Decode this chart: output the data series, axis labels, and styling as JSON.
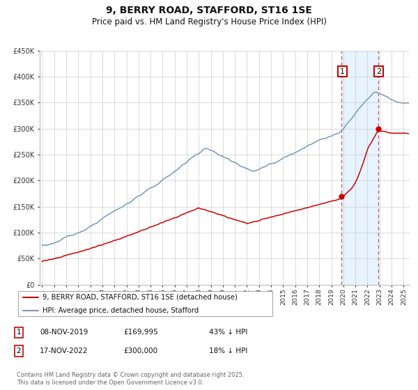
{
  "title": "9, BERRY ROAD, STAFFORD, ST16 1SE",
  "subtitle": "Price paid vs. HM Land Registry's House Price Index (HPI)",
  "title_fontsize": 10,
  "subtitle_fontsize": 8.5,
  "background_color": "#ffffff",
  "grid_color": "#cccccc",
  "red_color": "#cc0000",
  "blue_color": "#7799bb",
  "shade_color": "#ddeeff",
  "dashed_line_color": "#cc5555",
  "legend_label_red": "9, BERRY ROAD, STAFFORD, ST16 1SE (detached house)",
  "legend_label_blue": "HPI: Average price, detached house, Stafford",
  "transaction1_date": "08-NOV-2019",
  "transaction1_price": "£169,995",
  "transaction1_hpi": "43% ↓ HPI",
  "transaction2_date": "17-NOV-2022",
  "transaction2_price": "£300,000",
  "transaction2_hpi": "18% ↓ HPI",
  "footer": "Contains HM Land Registry data © Crown copyright and database right 2025.\nThis data is licensed under the Open Government Licence v3.0.",
  "ylim": [
    0,
    450000
  ],
  "xlim_start": 1994.8,
  "xlim_end": 2025.5,
  "transaction1_x": 2019.86,
  "transaction2_x": 2022.88,
  "transaction1_y_red": 169995,
  "transaction2_y_red": 300000
}
